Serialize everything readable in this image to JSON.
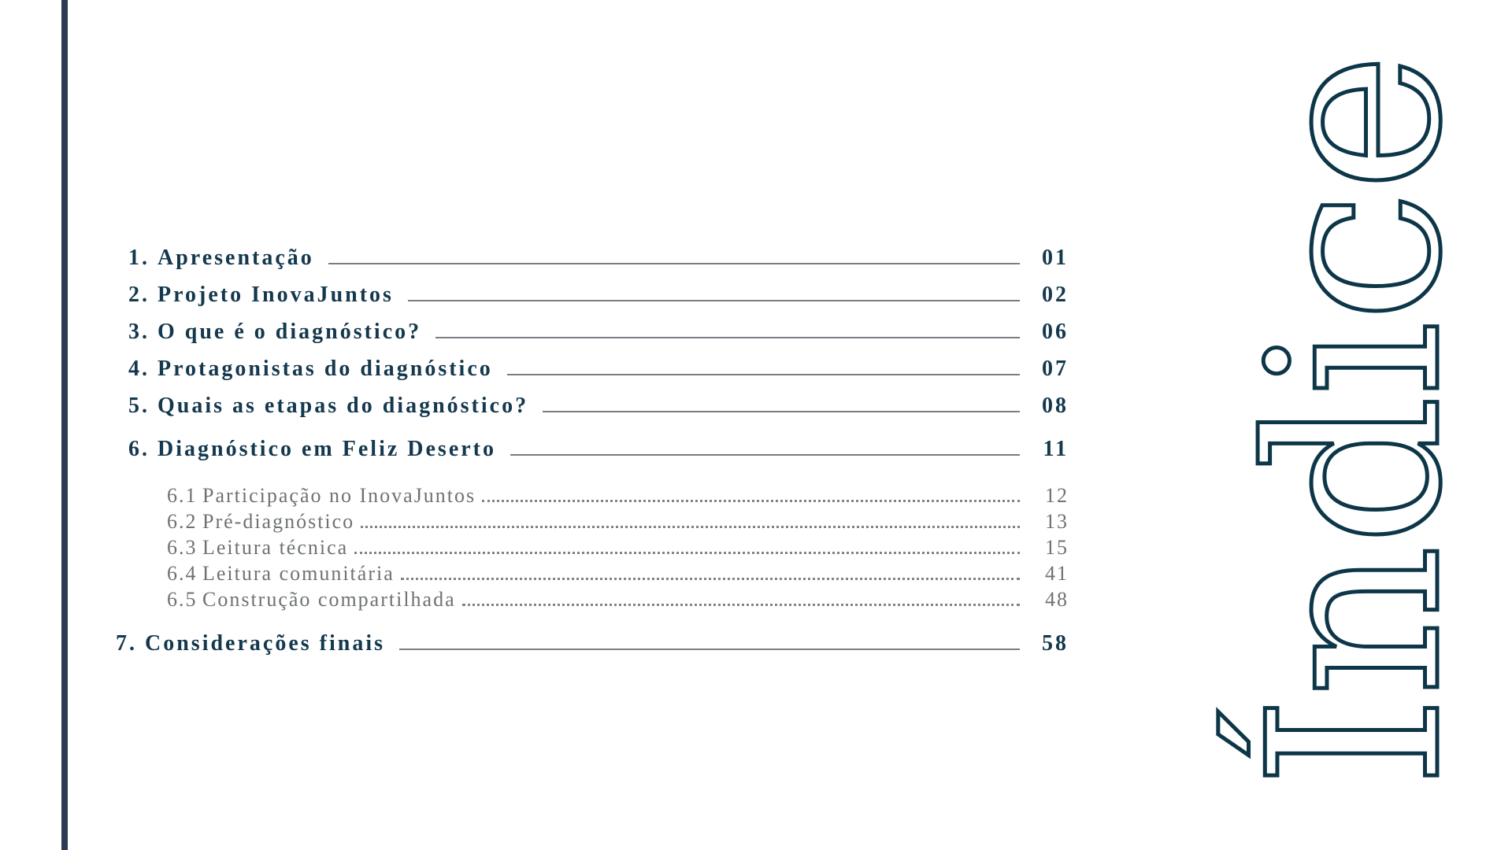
{
  "document": {
    "vertical_title": "Índice",
    "colors": {
      "background": "#ffffff",
      "accent_bar": "#2c3b55",
      "heading": "#14384d",
      "subentry": "#6e7275",
      "solid_leader": "#787d83",
      "dotted_leader": "#7f8489",
      "title_outline": "#0d3648"
    }
  },
  "toc": {
    "entries": [
      {
        "num": "1.",
        "title": "Apresentação",
        "page": "01",
        "level": "main",
        "leader": "solid"
      },
      {
        "num": "2.",
        "title": "Projeto InovaJuntos",
        "page": "02",
        "level": "main",
        "leader": "solid"
      },
      {
        "num": "3.",
        "title": "O que é o diagnóstico?",
        "page": "06",
        "level": "main",
        "leader": "solid"
      },
      {
        "num": "4.",
        "title": "Protagonistas do diagnóstico",
        "page": "07",
        "level": "main",
        "leader": "solid"
      },
      {
        "num": "5.",
        "title": "Quais as etapas do diagnóstico?",
        "page": "08",
        "level": "main",
        "leader": "solid"
      },
      {
        "num": "6.",
        "title": "Diagnóstico em Feliz Deserto",
        "page": "11",
        "level": "main",
        "leader": "solid"
      },
      {
        "num": "6.1",
        "title": "Participação no InovaJuntos",
        "page": "12",
        "level": "sub",
        "leader": "dotted"
      },
      {
        "num": "6.2",
        "title": "Pré-diagnóstico",
        "page": "13",
        "level": "sub",
        "leader": "dotted"
      },
      {
        "num": "6.3",
        "title": "Leitura técnica",
        "page": "15",
        "level": "sub",
        "leader": "dotted"
      },
      {
        "num": "6.4",
        "title": "Leitura comunitária",
        "page": "41",
        "level": "sub",
        "leader": "dotted"
      },
      {
        "num": "6.5",
        "title": "Construção compartilhada",
        "page": "48",
        "level": "sub",
        "leader": "dotted"
      },
      {
        "num": "7.",
        "title": "Considerações finais",
        "page": "58",
        "level": "main",
        "leader": "solid"
      }
    ]
  }
}
